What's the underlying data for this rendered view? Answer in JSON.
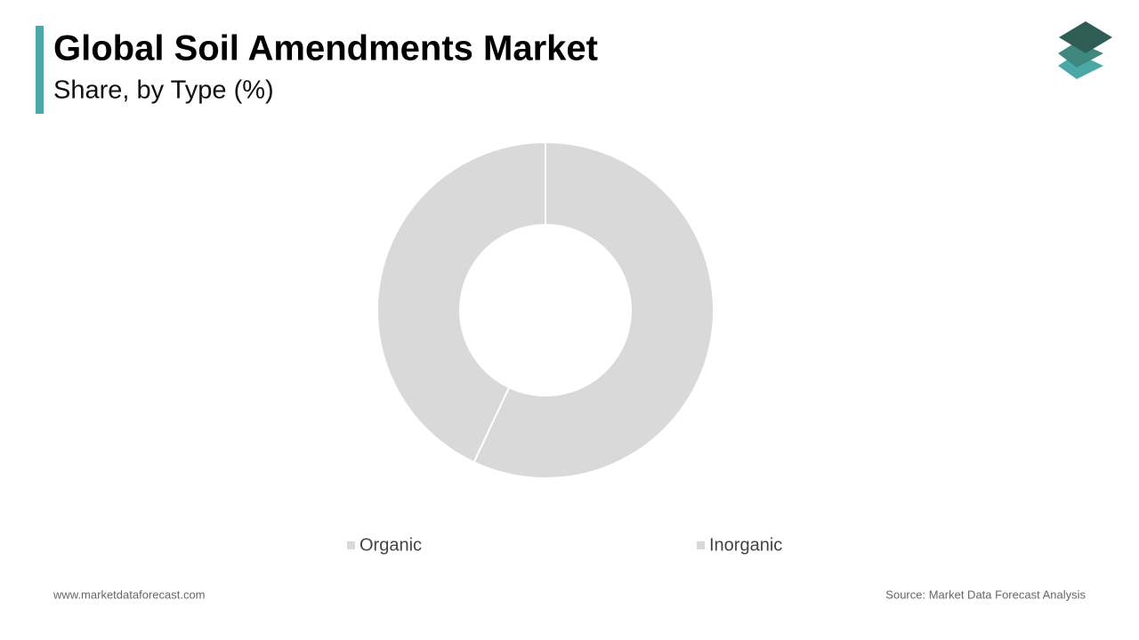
{
  "chart_data": {
    "type": "donut",
    "title": "Global Soil Amendments Market",
    "subtitle": "Share, by Type (%)",
    "categories": [
      "Organic",
      "Inorganic"
    ],
    "values": [
      57,
      43
    ],
    "colors": [
      "#d9d9d9",
      "#d9d9d9"
    ]
  },
  "footer": {
    "website": "www.marketdataforecast.com",
    "source": "Source: Market Data Forecast Analysis"
  }
}
